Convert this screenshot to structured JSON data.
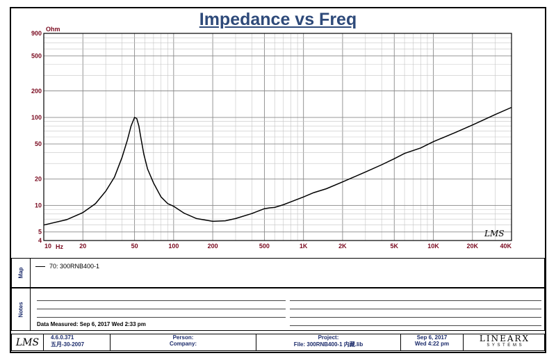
{
  "title": "Impedance vs Freq",
  "chart_data": {
    "type": "line",
    "title": "Impedance vs Freq",
    "xlabel": "Hz",
    "ylabel": "Ohm",
    "xscale": "log",
    "yscale": "log",
    "xlim": [
      10,
      40000
    ],
    "ylim": [
      4,
      900
    ],
    "x_ticks": [
      10,
      20,
      50,
      100,
      200,
      500,
      1000,
      2000,
      5000,
      10000,
      20000,
      40000
    ],
    "x_tick_labels": [
      "10",
      "20",
      "50",
      "100",
      "200",
      "500",
      "1K",
      "2K",
      "5K",
      "10K",
      "20K",
      "40K"
    ],
    "y_ticks": [
      4,
      5,
      10,
      20,
      50,
      100,
      200,
      500,
      900
    ],
    "y_tick_labels": [
      "4",
      "5",
      "10",
      "20",
      "50",
      "100",
      "200",
      "500",
      "900"
    ],
    "grid": true,
    "series": [
      {
        "name": "70: 300RNB400-1",
        "x": [
          10,
          15,
          20,
          25,
          30,
          35,
          40,
          44,
          47,
          50,
          52,
          54,
          56,
          59,
          63,
          70,
          80,
          90,
          100,
          120,
          150,
          200,
          250,
          300,
          400,
          500,
          550,
          600,
          700,
          800,
          1000,
          1200,
          1500,
          2000,
          3000,
          4000,
          5000,
          6000,
          8000,
          10000,
          15000,
          20000,
          30000,
          40000
        ],
        "y": [
          6.0,
          6.9,
          8.3,
          10.5,
          14.5,
          21,
          35,
          55,
          80,
          100,
          97,
          80,
          58,
          38,
          26,
          18,
          12.5,
          10.5,
          9.8,
          8.2,
          7.1,
          6.6,
          6.7,
          7.1,
          8.1,
          9.2,
          9.4,
          9.5,
          10.2,
          11,
          12.5,
          14,
          15.5,
          18.5,
          24,
          29,
          34,
          39,
          45,
          53,
          68,
          82,
          108,
          130
        ]
      }
    ]
  },
  "unit_top": "Ohm",
  "x_unit": "Hz",
  "mark": "LMS",
  "panels": {
    "map_label": "Map",
    "notes_label": "Notes",
    "legend_entry": "70: 300RNB400-1",
    "data_measured": "Data Measured: Sep 6, 2017  Wed  2:33 pm"
  },
  "footer": {
    "version": "4.6.0.371",
    "date_code": "五月-30-2007",
    "person_label": "Person:",
    "company_label": "Company:",
    "project_label": "Project:",
    "file_label": "File: 300RNB400-1  内藏.lib",
    "date": "Sep  6, 2017",
    "time": "Wed  4:22 pm",
    "brand": "LINEARX",
    "brand_sub": "S Y S T E M S"
  }
}
